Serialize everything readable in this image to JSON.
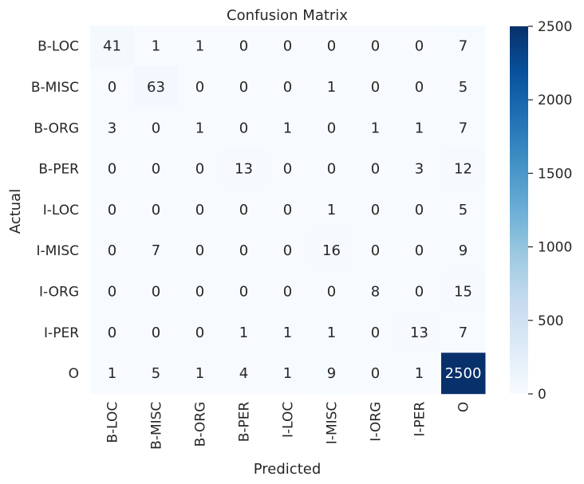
{
  "chart_data": {
    "type": "heatmap",
    "title": "Confusion Matrix",
    "xlabel": "Predicted",
    "ylabel": "Actual",
    "x_categories": [
      "B-LOC",
      "B-MISC",
      "B-ORG",
      "B-PER",
      "I-LOC",
      "I-MISC",
      "I-ORG",
      "I-PER",
      "O"
    ],
    "y_categories": [
      "B-LOC",
      "B-MISC",
      "B-ORG",
      "B-PER",
      "I-LOC",
      "I-MISC",
      "I-ORG",
      "I-PER",
      "O"
    ],
    "values": [
      [
        41,
        1,
        1,
        0,
        0,
        0,
        0,
        0,
        7
      ],
      [
        0,
        63,
        0,
        0,
        0,
        1,
        0,
        0,
        5
      ],
      [
        3,
        0,
        1,
        0,
        1,
        0,
        1,
        1,
        7
      ],
      [
        0,
        0,
        0,
        13,
        0,
        0,
        0,
        3,
        12
      ],
      [
        0,
        0,
        0,
        0,
        0,
        1,
        0,
        0,
        5
      ],
      [
        0,
        7,
        0,
        0,
        0,
        16,
        0,
        0,
        9
      ],
      [
        0,
        0,
        0,
        0,
        0,
        0,
        8,
        0,
        15
      ],
      [
        0,
        0,
        0,
        1,
        1,
        1,
        0,
        13,
        7
      ],
      [
        1,
        5,
        1,
        4,
        1,
        9,
        0,
        1,
        2500
      ]
    ],
    "colormap": "Blues",
    "colorbar": {
      "min": 0,
      "max": 2500,
      "ticks": [
        0,
        500,
        1000,
        1500,
        2000,
        2500
      ]
    },
    "low_color": "#f7fbff",
    "high_color": "#08306b",
    "grid": false
  }
}
